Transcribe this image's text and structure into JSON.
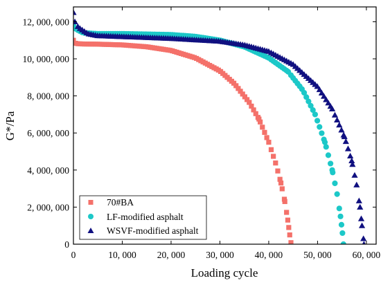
{
  "chart_data": {
    "type": "scatter",
    "xlabel": "Loading cycle",
    "ylabel": "G*/Pa",
    "xlim": [
      0,
      62000
    ],
    "ylim": [
      0,
      12800000
    ],
    "x_ticks": [
      0,
      10000,
      20000,
      30000,
      40000,
      50000,
      60000
    ],
    "x_tick_labels": [
      "0",
      "10, 000",
      "20, 000",
      "30, 000",
      "40, 000",
      "50, 000",
      "60, 000"
    ],
    "y_ticks": [
      0,
      2000000,
      4000000,
      6000000,
      8000000,
      10000000,
      12000000
    ],
    "y_tick_labels": [
      "0",
      "2, 000, 000",
      "4, 000, 000",
      "6, 000, 000",
      "8, 000, 000",
      "10, 000, 000",
      "12, 000, 000"
    ],
    "legend_position": "bottom-left",
    "grid": false,
    "series": [
      {
        "name": "70#BA",
        "marker": "square",
        "color": "#f4716a",
        "points": [
          [
            0,
            11000000
          ],
          [
            500,
            10820000
          ],
          [
            2000,
            10800000
          ],
          [
            5000,
            10790000
          ],
          [
            10000,
            10750000
          ],
          [
            15000,
            10650000
          ],
          [
            20000,
            10450000
          ],
          [
            25000,
            10050000
          ],
          [
            30000,
            9350000
          ],
          [
            33000,
            8650000
          ],
          [
            36000,
            7650000
          ],
          [
            38000,
            6750000
          ],
          [
            40000,
            5500000
          ],
          [
            41500,
            4300000
          ],
          [
            42500,
            3300000
          ],
          [
            43300,
            2300000
          ],
          [
            43900,
            1300000
          ],
          [
            44300,
            500000
          ],
          [
            44600,
            0
          ]
        ]
      },
      {
        "name": "LF-modified asphalt",
        "marker": "circle",
        "color": "#1cc8c8",
        "points": [
          [
            0,
            11800000
          ],
          [
            500,
            11600000
          ],
          [
            2000,
            11400000
          ],
          [
            5000,
            11350000
          ],
          [
            10000,
            11350000
          ],
          [
            20000,
            11300000
          ],
          [
            25000,
            11200000
          ],
          [
            30000,
            11000000
          ],
          [
            35000,
            10650000
          ],
          [
            40000,
            10050000
          ],
          [
            44000,
            9300000
          ],
          [
            47000,
            8300000
          ],
          [
            49500,
            7000000
          ],
          [
            51500,
            5500000
          ],
          [
            53000,
            4000000
          ],
          [
            54000,
            2700000
          ],
          [
            54700,
            1500000
          ],
          [
            55100,
            600000
          ],
          [
            55300,
            0
          ]
        ]
      },
      {
        "name": "WSVF-modified asphalt",
        "marker": "triangle",
        "color": "#101080",
        "points": [
          [
            0,
            12500000
          ],
          [
            300,
            12000000
          ],
          [
            1000,
            11700000
          ],
          [
            3000,
            11350000
          ],
          [
            5000,
            11250000
          ],
          [
            10000,
            11200000
          ],
          [
            20000,
            11100000
          ],
          [
            30000,
            10950000
          ],
          [
            35000,
            10750000
          ],
          [
            40000,
            10400000
          ],
          [
            45000,
            9700000
          ],
          [
            50000,
            8500000
          ],
          [
            53000,
            7300000
          ],
          [
            55500,
            5800000
          ],
          [
            57000,
            4500000
          ],
          [
            58000,
            3200000
          ],
          [
            58700,
            2000000
          ],
          [
            59100,
            1000000
          ],
          [
            59400,
            300000
          ],
          [
            59500,
            0
          ]
        ]
      }
    ]
  }
}
